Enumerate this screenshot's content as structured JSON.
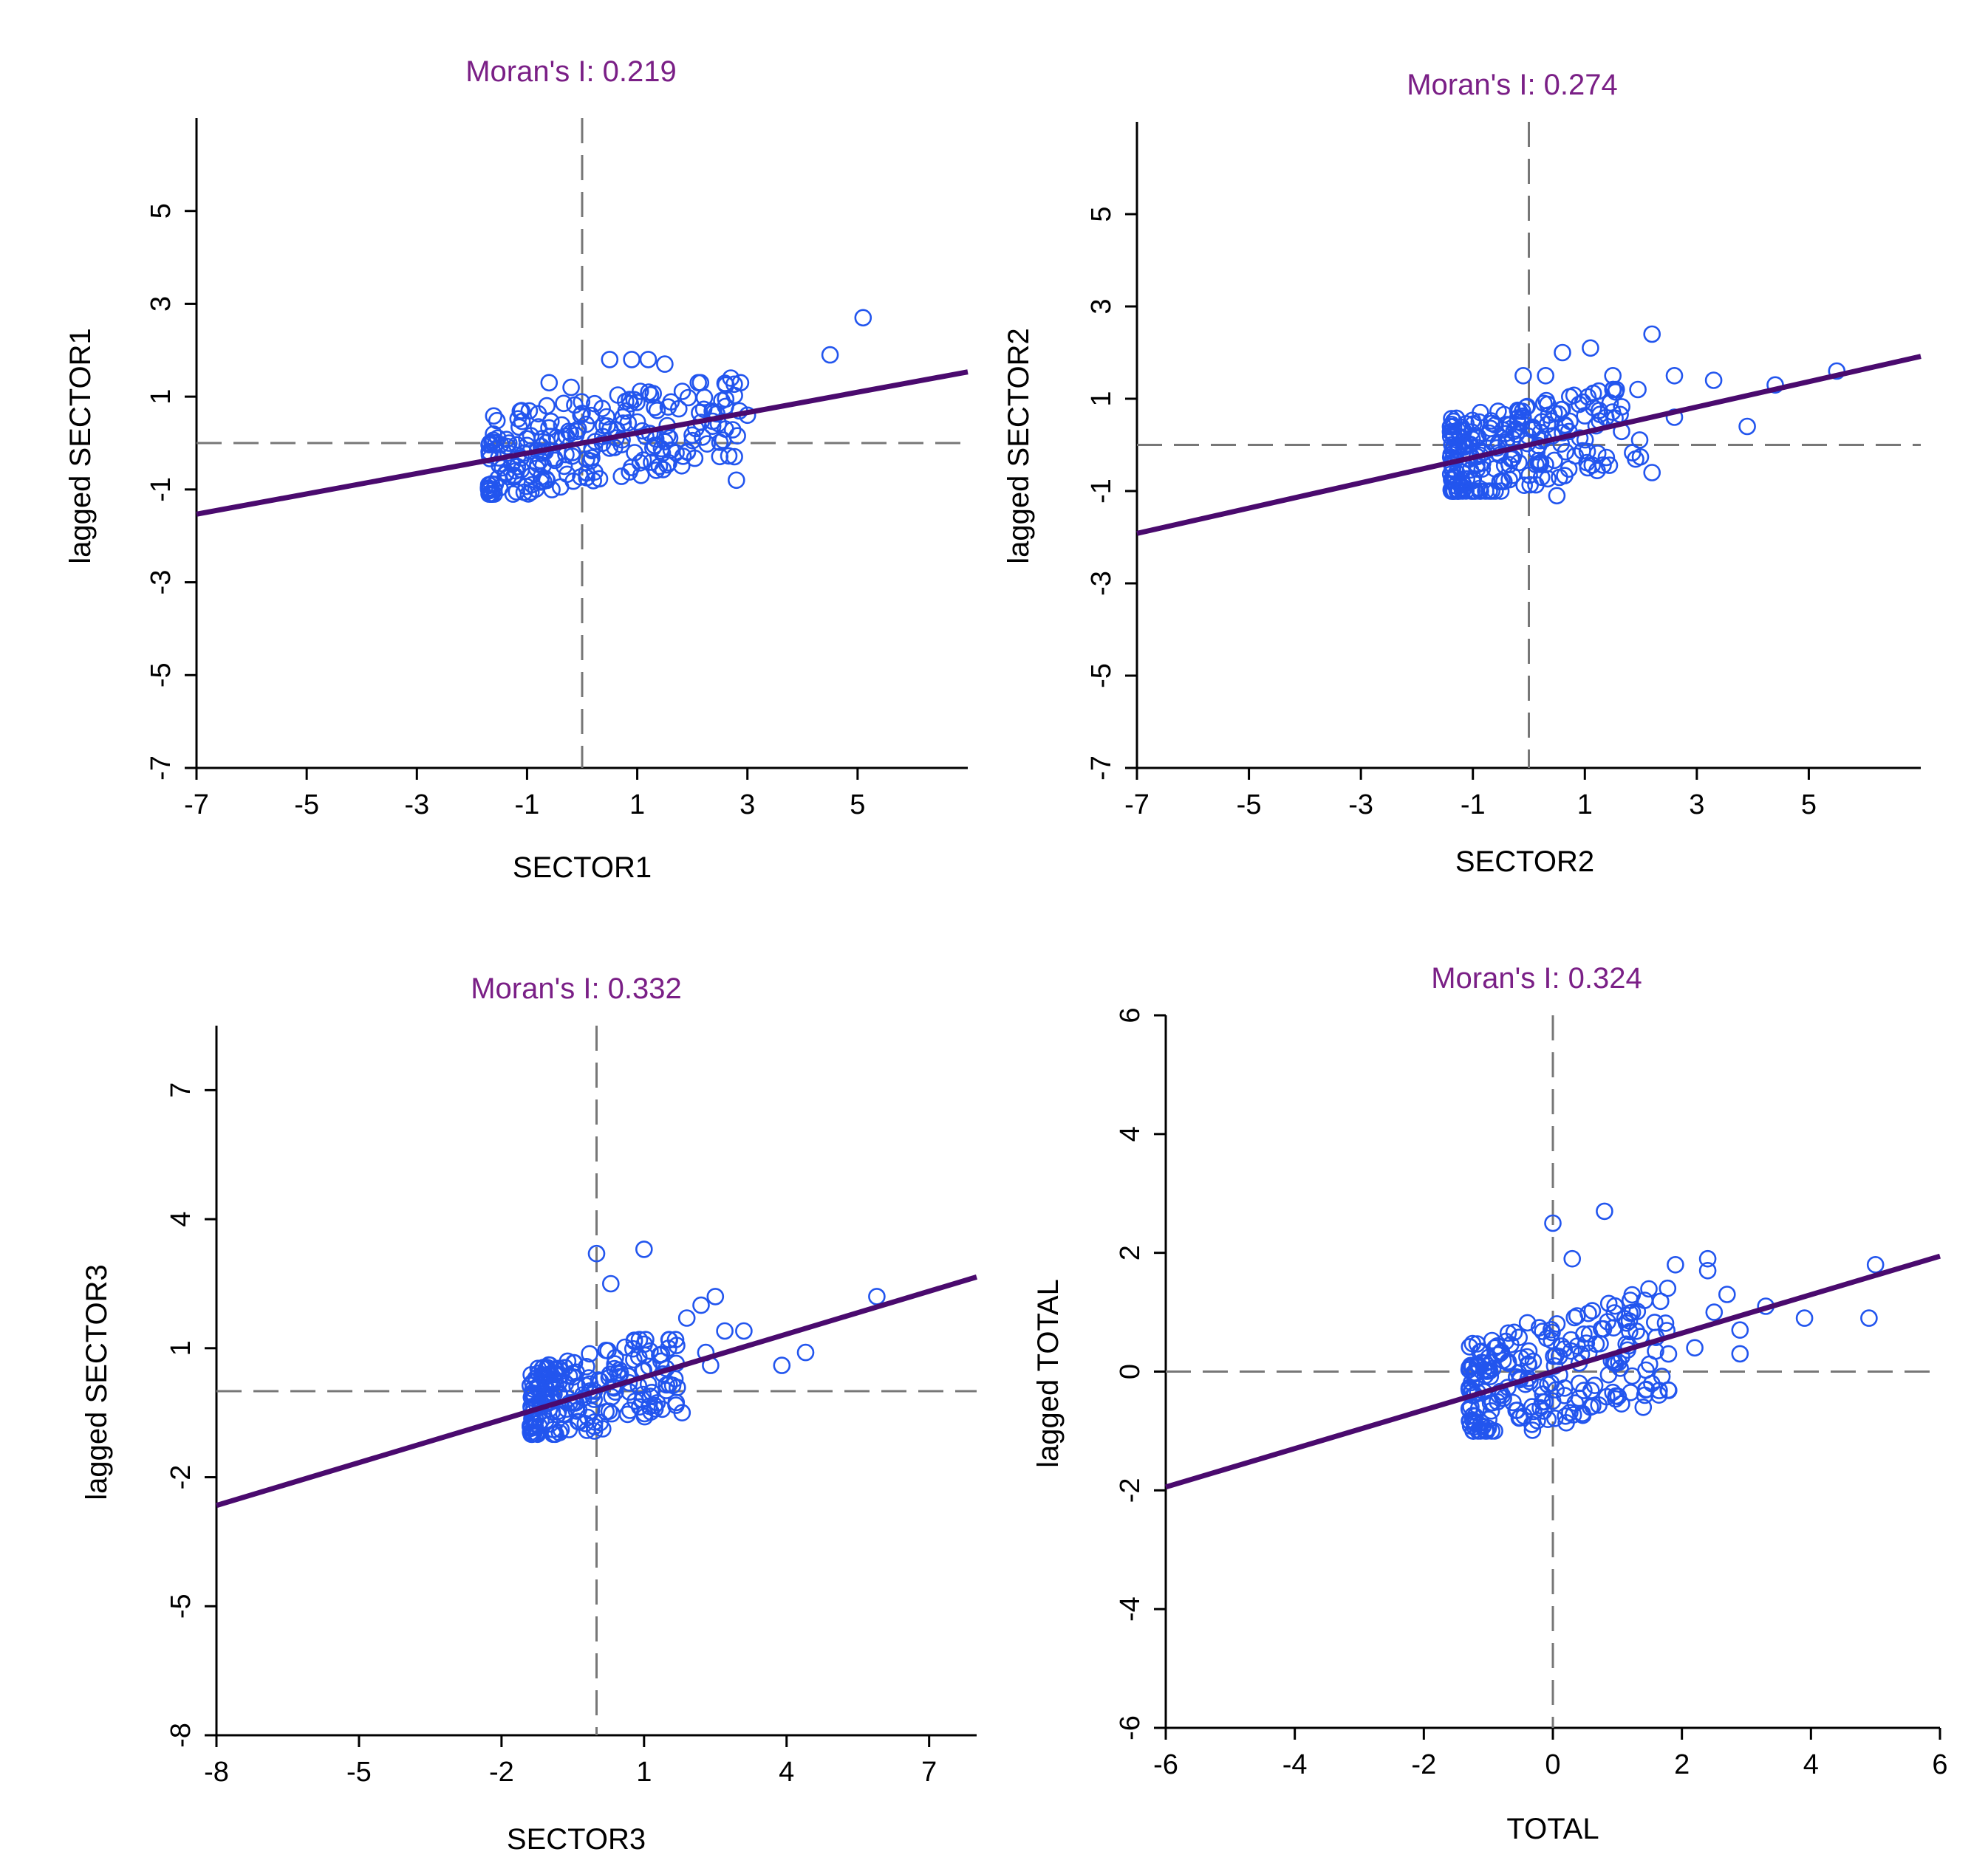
{
  "colors": {
    "title": "#7a1f86",
    "points": "#2255ee",
    "fit_line": "#4a0a6e",
    "reference_lines": "#777777",
    "axes": "#000000"
  },
  "chart_data": [
    {
      "type": "scatter",
      "title": "Moran's I: 0.219",
      "moran_i": 0.219,
      "xlabel": "SECTOR1",
      "ylabel": "lagged SECTOR1",
      "xlim": [
        -7,
        7
      ],
      "ylim": [
        -7,
        7
      ],
      "xticks": [
        -7,
        -5,
        -3,
        -1,
        1,
        3,
        5
      ],
      "yticks": [
        -7,
        -5,
        -3,
        -1,
        1,
        3,
        5
      ],
      "reference_lines": {
        "x": 0,
        "y": 0
      },
      "fit": {
        "slope": 0.219,
        "intercept": 0
      },
      "cluster": {
        "x_range": [
          -1.7,
          2.9
        ],
        "y_range": [
          -1.1,
          1.3
        ],
        "count": 230,
        "seed": 11
      },
      "points": [
        [
          5.1,
          2.7
        ],
        [
          4.5,
          1.9
        ],
        [
          2.7,
          1.4
        ],
        [
          2.8,
          -0.8
        ],
        [
          3.0,
          0.6
        ],
        [
          2.6,
          0.3
        ],
        [
          0.5,
          1.8
        ],
        [
          0.9,
          1.8
        ],
        [
          1.2,
          1.8
        ],
        [
          1.5,
          1.7
        ],
        [
          1.4,
          -0.5
        ],
        [
          -0.6,
          1.3
        ],
        [
          -0.2,
          1.2
        ],
        [
          -1.6,
          -1.0
        ]
      ]
    },
    {
      "type": "scatter",
      "title": "Moran's I: 0.274",
      "moran_i": 0.274,
      "xlabel": "SECTOR2",
      "ylabel": "lagged SECTOR2",
      "xlim": [
        -7,
        7
      ],
      "ylim": [
        -7,
        7
      ],
      "xticks": [
        -7,
        -5,
        -3,
        -1,
        1,
        3,
        5
      ],
      "yticks": [
        -7,
        -5,
        -3,
        -1,
        1,
        3,
        5
      ],
      "reference_lines": {
        "x": 0,
        "y": 0
      },
      "fit": {
        "slope": 0.274,
        "intercept": 0
      },
      "cluster": {
        "x_range": [
          -1.4,
          2.0
        ],
        "y_range": [
          -1.0,
          1.2
        ],
        "count": 230,
        "seed": 23
      },
      "points": [
        [
          5.5,
          1.6
        ],
        [
          4.4,
          1.3
        ],
        [
          3.9,
          0.4
        ],
        [
          3.3,
          1.4
        ],
        [
          2.6,
          1.5
        ],
        [
          2.6,
          0.6
        ],
        [
          2.2,
          2.4
        ],
        [
          1.5,
          1.5
        ],
        [
          1.5,
          1.2
        ],
        [
          0.6,
          2.0
        ],
        [
          1.1,
          2.1
        ],
        [
          0.3,
          1.5
        ],
        [
          -0.1,
          1.5
        ],
        [
          0.5,
          -1.1
        ],
        [
          2.2,
          -0.6
        ]
      ]
    },
    {
      "type": "scatter",
      "title": "Moran's I: 0.332",
      "moran_i": 0.332,
      "xlabel": "SECTOR3",
      "ylabel": "lagged SECTOR3",
      "xlim": [
        -8,
        8
      ],
      "ylim": [
        -8,
        8.5
      ],
      "xticks": [
        -8,
        -5,
        -2,
        1,
        4,
        7
      ],
      "yticks": [
        -8,
        -5,
        -2,
        1,
        4,
        7
      ],
      "reference_lines": {
        "x": 0,
        "y": 0
      },
      "fit": {
        "slope": 0.332,
        "intercept": 0
      },
      "cluster": {
        "x_range": [
          -1.4,
          1.8
        ],
        "y_range": [
          -1.0,
          1.2
        ],
        "count": 210,
        "seed": 37
      },
      "points": [
        [
          5.9,
          2.2
        ],
        [
          4.4,
          0.9
        ],
        [
          3.9,
          0.6
        ],
        [
          3.1,
          1.4
        ],
        [
          2.7,
          1.4
        ],
        [
          2.5,
          2.2
        ],
        [
          2.2,
          2.0
        ],
        [
          2.4,
          0.6
        ],
        [
          1.9,
          1.7
        ],
        [
          0.0,
          3.2
        ],
        [
          1.0,
          3.3
        ],
        [
          0.3,
          2.5
        ],
        [
          1.8,
          -0.5
        ],
        [
          1.4,
          0.4
        ],
        [
          2.3,
          0.9
        ]
      ]
    },
    {
      "type": "scatter",
      "title": "Moran's I: 0.324",
      "moran_i": 0.324,
      "xlabel": "TOTAL",
      "ylabel": "lagged TOTAL",
      "xlim": [
        -6,
        6
      ],
      "ylim": [
        -6,
        6
      ],
      "xticks": [
        -6,
        -4,
        -2,
        0,
        2,
        4,
        6
      ],
      "yticks": [
        -6,
        -4,
        -2,
        0,
        2,
        4,
        6
      ],
      "reference_lines": {
        "x": 0,
        "y": 0
      },
      "fit": {
        "slope": 0.324,
        "intercept": 0
      },
      "cluster": {
        "x_range": [
          -1.3,
          1.8
        ],
        "y_range": [
          -1.0,
          1.5
        ],
        "count": 230,
        "seed": 53
      },
      "points": [
        [
          5.0,
          1.8
        ],
        [
          4.9,
          0.9
        ],
        [
          3.9,
          0.9
        ],
        [
          3.3,
          1.1
        ],
        [
          2.9,
          0.7
        ],
        [
          2.9,
          0.3
        ],
        [
          2.7,
          1.3
        ],
        [
          2.4,
          1.9
        ],
        [
          2.4,
          1.7
        ],
        [
          1.9,
          1.8
        ],
        [
          0.0,
          2.5
        ],
        [
          0.8,
          2.7
        ],
        [
          0.3,
          1.9
        ],
        [
          1.2,
          1.2
        ],
        [
          1.4,
          -0.6
        ],
        [
          2.2,
          0.4
        ],
        [
          2.5,
          1.0
        ]
      ]
    }
  ]
}
